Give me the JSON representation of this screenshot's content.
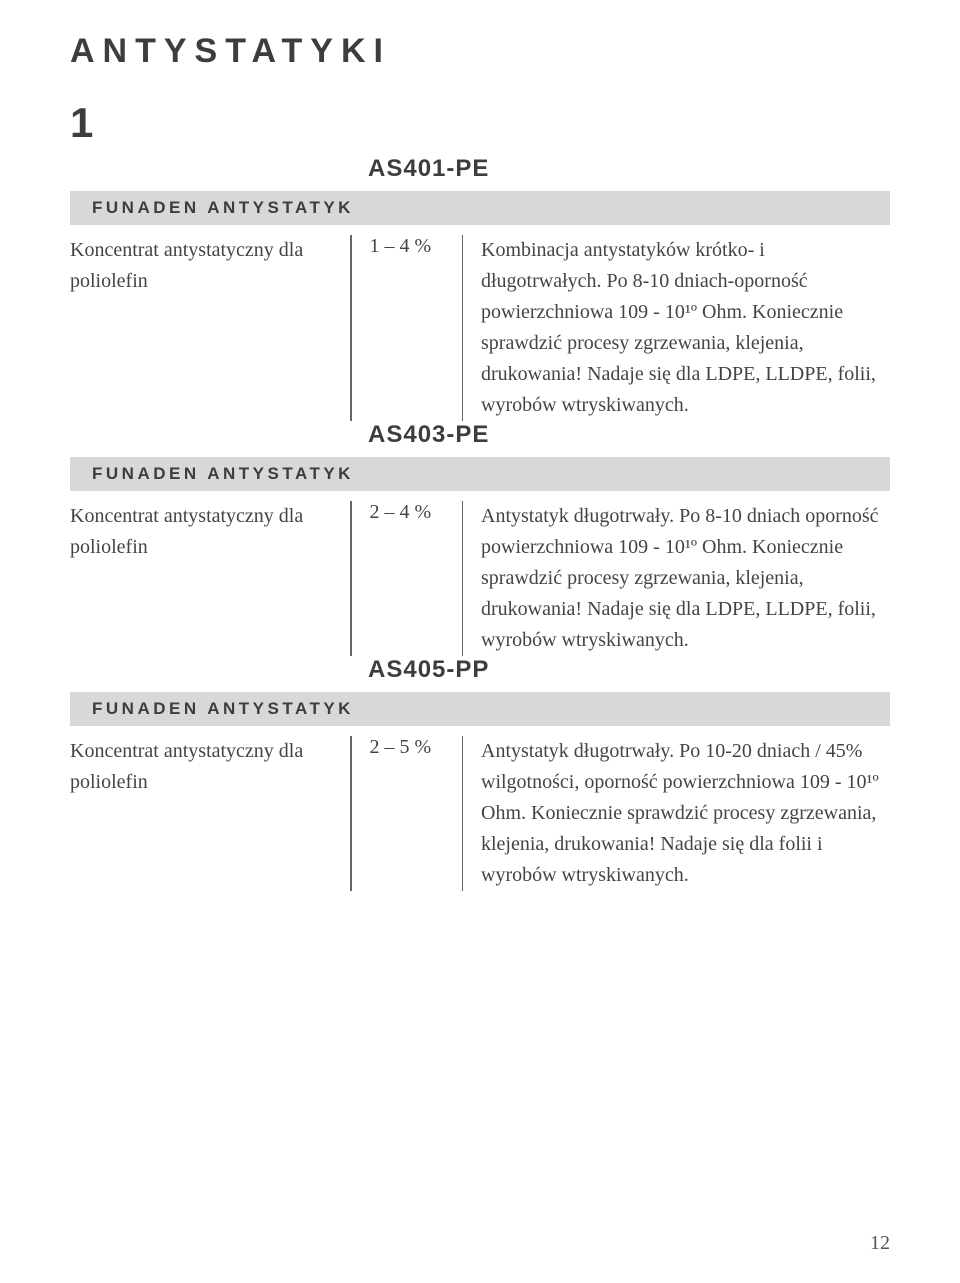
{
  "page": {
    "title": "ANTYSTATYKI",
    "section_number": "1",
    "page_number": "12"
  },
  "colors": {
    "category_bar_bg": "#d9d7d8",
    "text_primary": "#3d3d3d",
    "text_body": "#444444",
    "divider": "#666666",
    "background": "#ffffff"
  },
  "products": [
    {
      "code": "AS401-PE",
      "category": "FUNADEN ANTYSTATYK",
      "name": "Koncentrat antystatyczny dla poliolefin",
      "dosage": "1 – 4 %",
      "description": "Kombinacja antystatyków krótko- i długotrwałych. Po 8-10 dniach-oporność powierzchniowa 109 - 10¹º Ohm. Koniecznie sprawdzić procesy zgrzewania, klejenia, drukowania! Nadaje się dla LDPE, LLDPE, folii, wyrobów wtryskiwanych."
    },
    {
      "code": "AS403-PE",
      "category": "FUNADEN ANTYSTATYK",
      "name": "Koncentrat antystatyczny dla poliolefin",
      "dosage": "2 – 4 %",
      "description": "Antystatyk długotrwały. Po 8-10 dniach oporność powierzchniowa 109 - 10¹º Ohm. Koniecznie sprawdzić procesy zgrzewania, klejenia, drukowania! Nadaje się dla LDPE, LLDPE, folii, wyrobów wtryskiwanych."
    },
    {
      "code": "AS405-PP",
      "category": "FUNADEN ANTYSTATYK",
      "name": "Koncentrat antystatyczny dla poliolefin",
      "dosage": "2 – 5 %",
      "description": "Antystatyk długotrwały. Po 10-20 dniach / 45% wilgotności, oporność powierzchniowa 109 - 10¹º Ohm. Koniecznie sprawdzić procesy zgrzewania, klejenia, drukowania! Nadaje się dla folii i wyrobów wtryskiwanych."
    }
  ]
}
